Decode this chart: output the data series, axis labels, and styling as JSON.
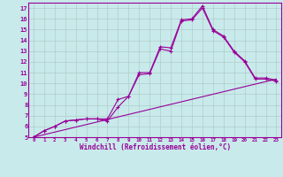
{
  "xlabel": "Windchill (Refroidissement éolien,°C)",
  "bg_color": "#c8eaea",
  "grid_color": "#b0cccc",
  "line_color": "#990099",
  "xlim": [
    -0.5,
    23.5
  ],
  "ylim": [
    5,
    17.5
  ],
  "xticks": [
    0,
    1,
    2,
    3,
    4,
    5,
    6,
    7,
    8,
    9,
    10,
    11,
    12,
    13,
    14,
    15,
    16,
    17,
    18,
    19,
    20,
    21,
    22,
    23
  ],
  "yticks": [
    5,
    6,
    7,
    8,
    9,
    10,
    11,
    12,
    13,
    14,
    15,
    16,
    17
  ],
  "series1_x": [
    0,
    1,
    2,
    3,
    4,
    5,
    6,
    7,
    8,
    9,
    10,
    11,
    12,
    13,
    14,
    15,
    16,
    17,
    18,
    19,
    20,
    21,
    22,
    23
  ],
  "series1_y": [
    5.0,
    5.6,
    6.0,
    6.5,
    6.6,
    6.7,
    6.7,
    6.7,
    8.5,
    8.8,
    11.0,
    11.0,
    13.4,
    13.3,
    15.9,
    16.0,
    17.2,
    15.0,
    14.4,
    13.0,
    12.1,
    10.5,
    10.5,
    10.3
  ],
  "series2_x": [
    0,
    1,
    2,
    3,
    4,
    5,
    6,
    7,
    8,
    9,
    10,
    11,
    12,
    13,
    14,
    15,
    16,
    17,
    18,
    19,
    20,
    21,
    22,
    23
  ],
  "series2_y": [
    5.0,
    5.6,
    6.0,
    6.5,
    6.6,
    6.7,
    6.7,
    6.5,
    7.8,
    8.8,
    10.8,
    10.9,
    13.2,
    13.0,
    15.8,
    15.9,
    17.0,
    14.9,
    14.3,
    12.9,
    12.0,
    10.4,
    10.4,
    10.2
  ],
  "series3_x": [
    0,
    23
  ],
  "series3_y": [
    5.0,
    10.4
  ]
}
